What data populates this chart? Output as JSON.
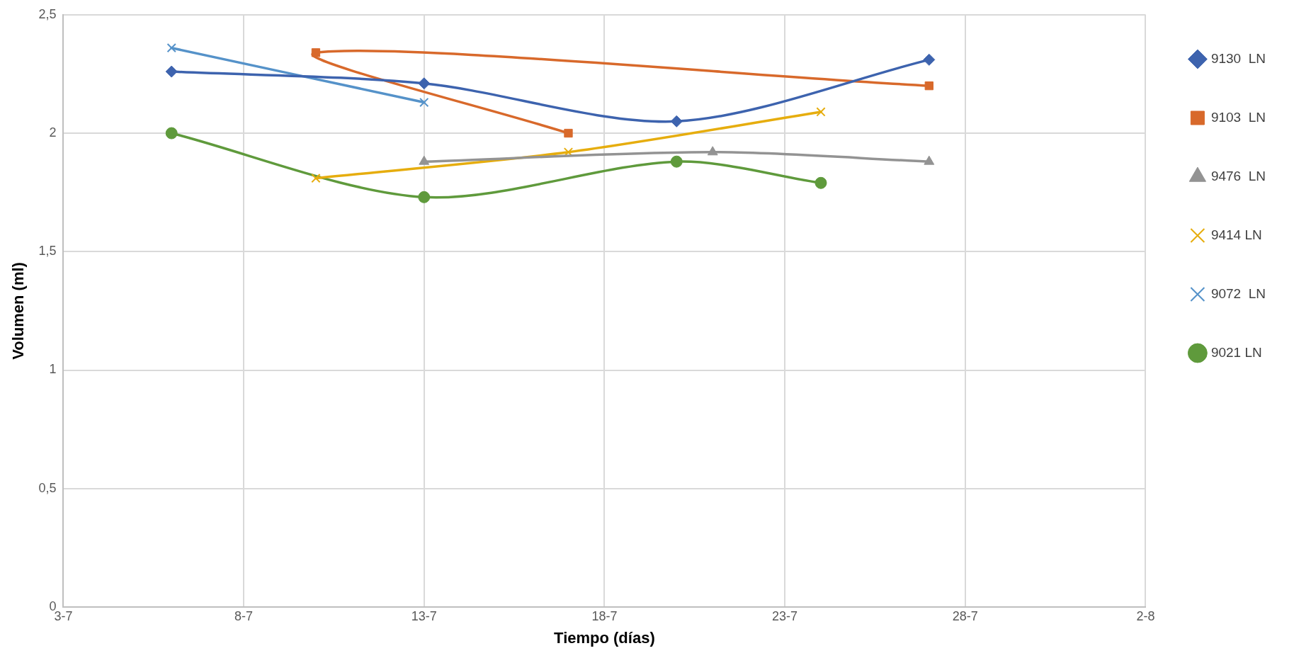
{
  "chart_data": {
    "type": "line",
    "xlabel": "Tiempo (días)",
    "ylabel": "Volumen (ml)",
    "xlim": [
      "--07-03",
      "--08-02"
    ],
    "xticks": [
      {
        "value": "--07-03",
        "label": "3-7"
      },
      {
        "value": "--07-08",
        "label": "8-7"
      },
      {
        "value": "--07-13",
        "label": "13-7"
      },
      {
        "value": "--07-18",
        "label": "18-7"
      },
      {
        "value": "--07-23",
        "label": "23-7"
      },
      {
        "value": "--07-28",
        "label": "28-7"
      },
      {
        "value": "--08-02",
        "label": "2-8"
      }
    ],
    "ylim": [
      0,
      2.5
    ],
    "yticks": [
      {
        "value": 0,
        "label": "0"
      },
      {
        "value": 0.5,
        "label": "0,5"
      },
      {
        "value": 1,
        "label": "1"
      },
      {
        "value": 1.5,
        "label": "1,5"
      },
      {
        "value": 2,
        "label": "2"
      },
      {
        "value": 2.5,
        "label": "2,5"
      }
    ],
    "grid": true,
    "legend": "right",
    "line_style": "solid",
    "series": [
      {
        "name": "9130  LN",
        "color": "#3d63ae",
        "marker": "diamond",
        "x": [
          "--07-06",
          "--07-13",
          "--07-20",
          "--07-27"
        ],
        "values": [
          2.26,
          2.21,
          2.05,
          2.31
        ]
      },
      {
        "name": "9103  LN",
        "color": "#d8692b",
        "marker": "square",
        "x": [
          "--07-17",
          "--07-10",
          "--07-27"
        ],
        "values": [
          2.0,
          2.34,
          2.2
        ]
      },
      {
        "name": "9476  LN",
        "color": "#939393",
        "marker": "triangle",
        "x": [
          "--07-13",
          "--07-21",
          "--07-27"
        ],
        "values": [
          1.88,
          1.92,
          1.88
        ]
      },
      {
        "name": "9414 LN",
        "color": "#e6ad0e",
        "marker": "cross",
        "x": [
          "--07-10",
          "--07-17",
          "--07-24"
        ],
        "values": [
          1.81,
          1.92,
          2.09
        ]
      },
      {
        "name": "9072  LN",
        "color": "#5592c9",
        "marker": "cross",
        "x": [
          "--07-06",
          "--07-13"
        ],
        "values": [
          2.36,
          2.13
        ]
      },
      {
        "name": "9021 LN",
        "color": "#5f9a3c",
        "marker": "circle",
        "x": [
          "--07-06",
          "--07-13",
          "--07-20",
          "--07-24"
        ],
        "values": [
          2.0,
          1.73,
          1.88,
          1.79
        ]
      }
    ]
  }
}
